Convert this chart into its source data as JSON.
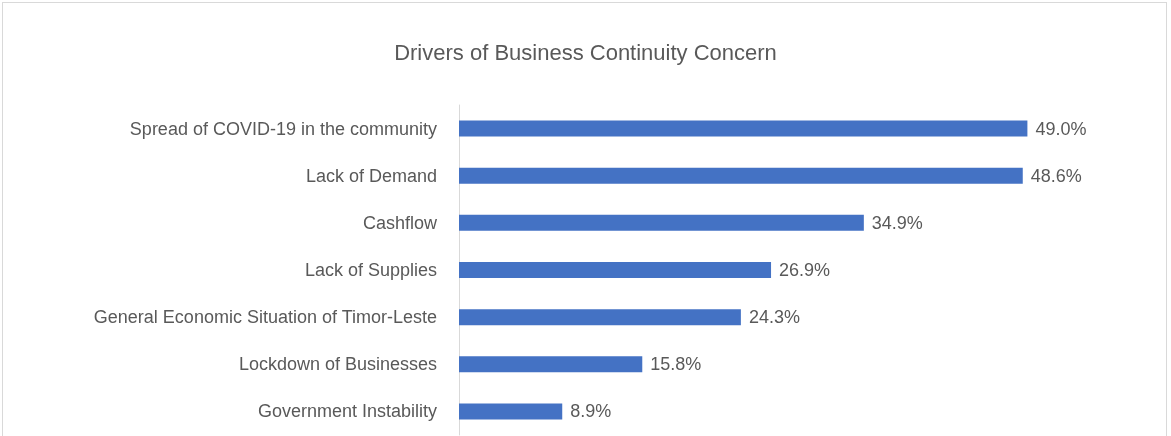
{
  "chart_data": {
    "type": "bar",
    "orientation": "horizontal",
    "title": "Drivers of Business Continuity Concern",
    "categories": [
      "Spread of COVID-19 in the community",
      "Lack of Demand",
      "Cashflow",
      "Lack of Supplies",
      "General Economic Situation of Timor-Leste",
      "Lockdown of Businesses",
      "Government Instability"
    ],
    "values": [
      49.0,
      48.6,
      34.9,
      26.9,
      24.3,
      15.8,
      8.9
    ],
    "value_labels": [
      "49.0%",
      "48.6%",
      "34.9%",
      "26.9%",
      "24.3%",
      "15.8%",
      "8.9%"
    ],
    "color": "#4472c4",
    "tick_labels": "y"
  }
}
